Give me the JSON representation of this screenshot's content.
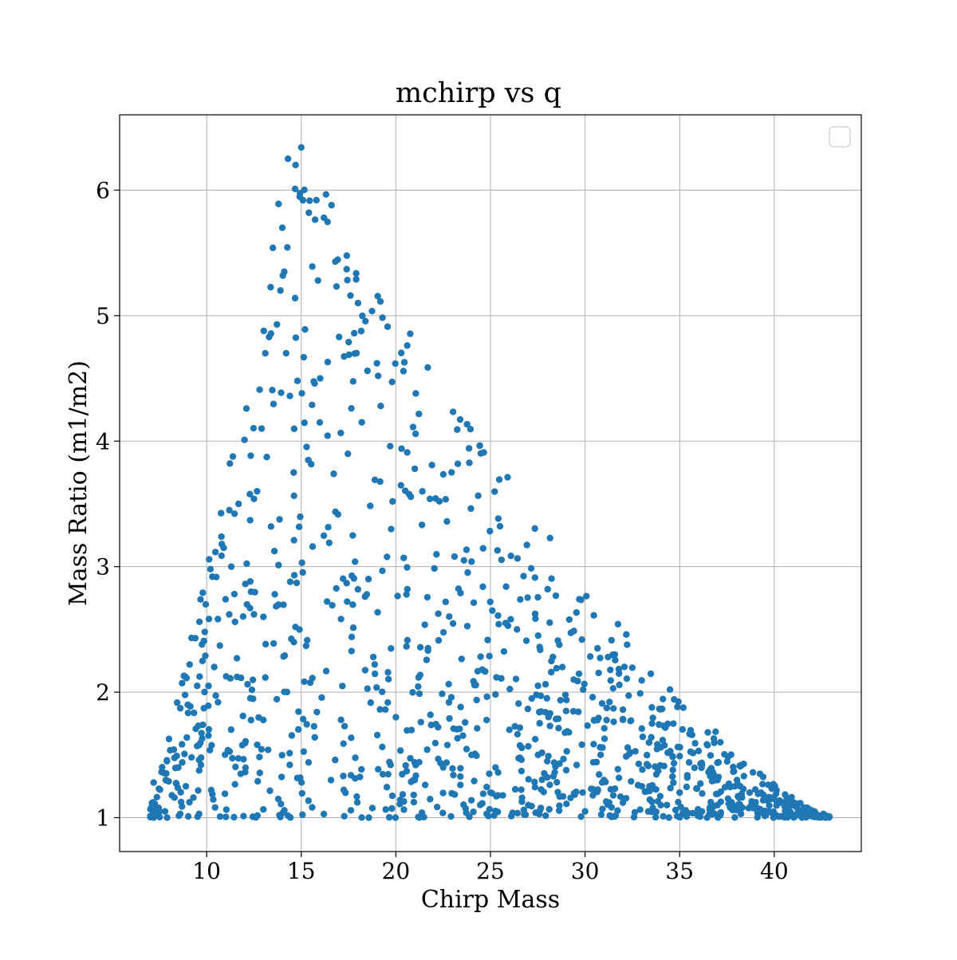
{
  "chart_data": {
    "type": "scatter",
    "title": "mchirp vs q",
    "xlabel": "Chirp Mass",
    "ylabel": "Mass Ratio (m1/m2)",
    "xlim": [
      5.4,
      44.6
    ],
    "ylim": [
      0.73,
      6.6
    ],
    "xticks": [
      10,
      15,
      20,
      25,
      30,
      35,
      40
    ],
    "yticks": [
      1,
      2,
      3,
      4,
      5,
      6
    ],
    "grid": true,
    "legend": "top-right (empty)",
    "marker_color": "#1f77b4",
    "point_count": 1200,
    "envelope_note": "points sampled under an upper-envelope boundary peaking near (15, 6.3) and falling to (43, 1.0)",
    "points": [
      [
        7.2,
        1.28
      ],
      [
        7.5,
        1.05
      ],
      [
        7.8,
        1.05
      ],
      [
        7.9,
        1.45
      ],
      [
        8.3,
        1.16
      ],
      [
        8.4,
        1.27
      ],
      [
        8.5,
        1.4
      ],
      [
        8.6,
        1.03
      ],
      [
        8.8,
        2.13
      ],
      [
        8.9,
        1.25
      ],
      [
        9.0,
        1.9
      ],
      [
        9.1,
        2.22
      ],
      [
        9.2,
        1.48
      ],
      [
        9.3,
        1.16
      ],
      [
        9.4,
        2.43
      ],
      [
        9.5,
        2.05
      ],
      [
        9.6,
        1.03
      ],
      [
        9.7,
        1.42
      ],
      [
        9.8,
        1.74
      ],
      [
        9.9,
        2.48
      ],
      [
        10.1,
        2.05
      ],
      [
        10.2,
        2.98
      ],
      [
        10.3,
        2.92
      ],
      [
        10.4,
        2.2
      ],
      [
        10.6,
        1.92
      ],
      [
        10.8,
        3.18
      ],
      [
        10.9,
        3.15
      ],
      [
        11.0,
        2.74
      ],
      [
        11.2,
        3.45
      ],
      [
        11.3,
        3.0
      ],
      [
        11.5,
        2.56
      ],
      [
        11.6,
        2.27
      ],
      [
        11.8,
        1.35
      ],
      [
        12.0,
        4.01
      ],
      [
        12.1,
        4.26
      ],
      [
        12.3,
        3.37
      ],
      [
        12.5,
        3.54
      ],
      [
        12.5,
        2.62
      ],
      [
        12.7,
        1.29
      ],
      [
        12.8,
        4.41
      ],
      [
        12.9,
        4.1
      ],
      [
        13.0,
        2.6
      ],
      [
        13.1,
        4.7
      ],
      [
        13.3,
        4.83
      ],
      [
        13.4,
        3.32
      ],
      [
        13.5,
        5.54
      ],
      [
        13.6,
        2.78
      ],
      [
        13.8,
        5.89
      ],
      [
        13.9,
        5.2
      ],
      [
        14.0,
        5.7
      ],
      [
        14.1,
        5.35
      ],
      [
        14.2,
        4.7
      ],
      [
        14.3,
        6.25
      ],
      [
        14.4,
        4.36
      ],
      [
        14.6,
        3.75
      ],
      [
        14.7,
        6.2
      ],
      [
        14.8,
        4.48
      ],
      [
        15.0,
        6.34
      ],
      [
        15.2,
        4.89
      ],
      [
        15.4,
        5.82
      ],
      [
        15.6,
        3.16
      ],
      [
        15.8,
        5.92
      ],
      [
        16.0,
        4.5
      ],
      [
        16.2,
        5.78
      ],
      [
        16.4,
        4.63
      ],
      [
        16.6,
        5.88
      ],
      [
        16.8,
        5.43
      ],
      [
        17.0,
        4.83
      ],
      [
        17.4,
        5.37
      ],
      [
        17.6,
        5.16
      ],
      [
        17.8,
        4.86
      ],
      [
        18.0,
        5.1
      ],
      [
        18.2,
        4.15
      ],
      [
        18.5,
        4.56
      ],
      [
        19.0,
        4.62
      ],
      [
        19.2,
        4.28
      ],
      [
        19.7,
        3.96
      ],
      [
        20.3,
        3.94
      ],
      [
        20.6,
        3.91
      ],
      [
        21.0,
        3.78
      ],
      [
        21.4,
        3.6
      ],
      [
        21.8,
        3.54
      ],
      [
        22.3,
        3.52
      ],
      [
        22.7,
        3.36
      ],
      [
        23.1,
        3.08
      ],
      [
        23.6,
        3.05
      ],
      [
        24.0,
        3.04
      ],
      [
        24.6,
        2.84
      ],
      [
        25.1,
        2.65
      ],
      [
        25.4,
        2.61
      ],
      [
        25.8,
        2.55
      ],
      [
        26.4,
        2.5
      ],
      [
        26.9,
        2.41
      ],
      [
        27.6,
        2.36
      ],
      [
        28.3,
        2.28
      ],
      [
        28.8,
        2.2
      ],
      [
        29.4,
        2.1
      ],
      [
        29.9,
        2.02
      ],
      [
        30.4,
        1.96
      ],
      [
        30.9,
        1.91
      ],
      [
        31.5,
        1.87
      ],
      [
        32.0,
        1.78
      ],
      [
        32.4,
        1.77
      ],
      [
        33.0,
        1.71
      ],
      [
        33.5,
        1.64
      ],
      [
        34.0,
        1.56
      ],
      [
        34.5,
        1.53
      ],
      [
        35.0,
        1.49
      ],
      [
        35.5,
        1.44
      ],
      [
        36.1,
        1.43
      ],
      [
        36.6,
        1.38
      ],
      [
        37.0,
        1.3
      ],
      [
        37.6,
        1.27
      ],
      [
        38.2,
        1.25
      ],
      [
        38.7,
        1.2
      ],
      [
        39.3,
        1.2
      ],
      [
        39.9,
        1.16
      ],
      [
        40.5,
        1.12
      ],
      [
        41.0,
        1.1
      ],
      [
        41.6,
        1.08
      ],
      [
        42.1,
        1.04
      ],
      [
        42.6,
        1.03
      ],
      [
        42.9,
        1.01
      ],
      [
        20.0,
        1.8
      ],
      [
        21.0,
        1.3
      ],
      [
        22.5,
        1.4
      ],
      [
        24.0,
        1.5
      ],
      [
        25.0,
        1.2
      ],
      [
        26.0,
        1.7
      ],
      [
        27.0,
        1.1
      ],
      [
        28.0,
        1.45
      ],
      [
        29.0,
        1.85
      ],
      [
        30.0,
        1.05
      ],
      [
        31.0,
        1.3
      ],
      [
        32.0,
        1.12
      ],
      [
        33.0,
        1.25
      ],
      [
        34.0,
        1.1
      ],
      [
        35.0,
        1.2
      ],
      [
        36.0,
        1.05
      ],
      [
        37.0,
        1.1
      ],
      [
        38.0,
        1.06
      ],
      [
        39.0,
        1.08
      ],
      [
        40.0,
        1.03
      ]
    ]
  }
}
